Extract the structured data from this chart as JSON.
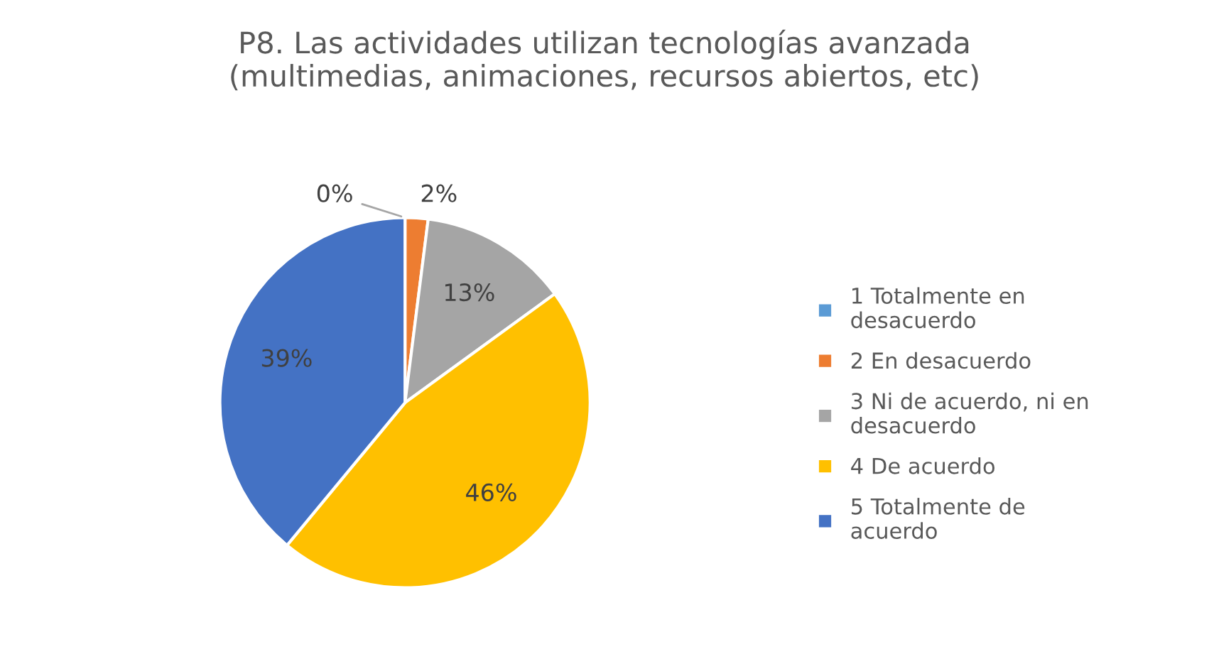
{
  "chart_data": {
    "type": "pie",
    "title": "P8. Las actividades utilizan tecnologías avanzada\n(multimedias, animaciones, recursos abiertos, etc)",
    "categories": [
      "1 Totalmente en desacuerdo",
      "2 En desacuerdo",
      "3 Ni de acuerdo, ni en desacuerdo",
      "4 De acuerdo",
      "5 Totalmente de acuerdo"
    ],
    "values": [
      0,
      2,
      13,
      46,
      39
    ],
    "colors": [
      "#5b9bd5",
      "#ed7d31",
      "#a5a5a5",
      "#ffc000",
      "#4472c4"
    ],
    "value_labels": [
      "0%",
      "2%",
      "13%",
      "46%",
      "39%"
    ],
    "legend": "right"
  }
}
